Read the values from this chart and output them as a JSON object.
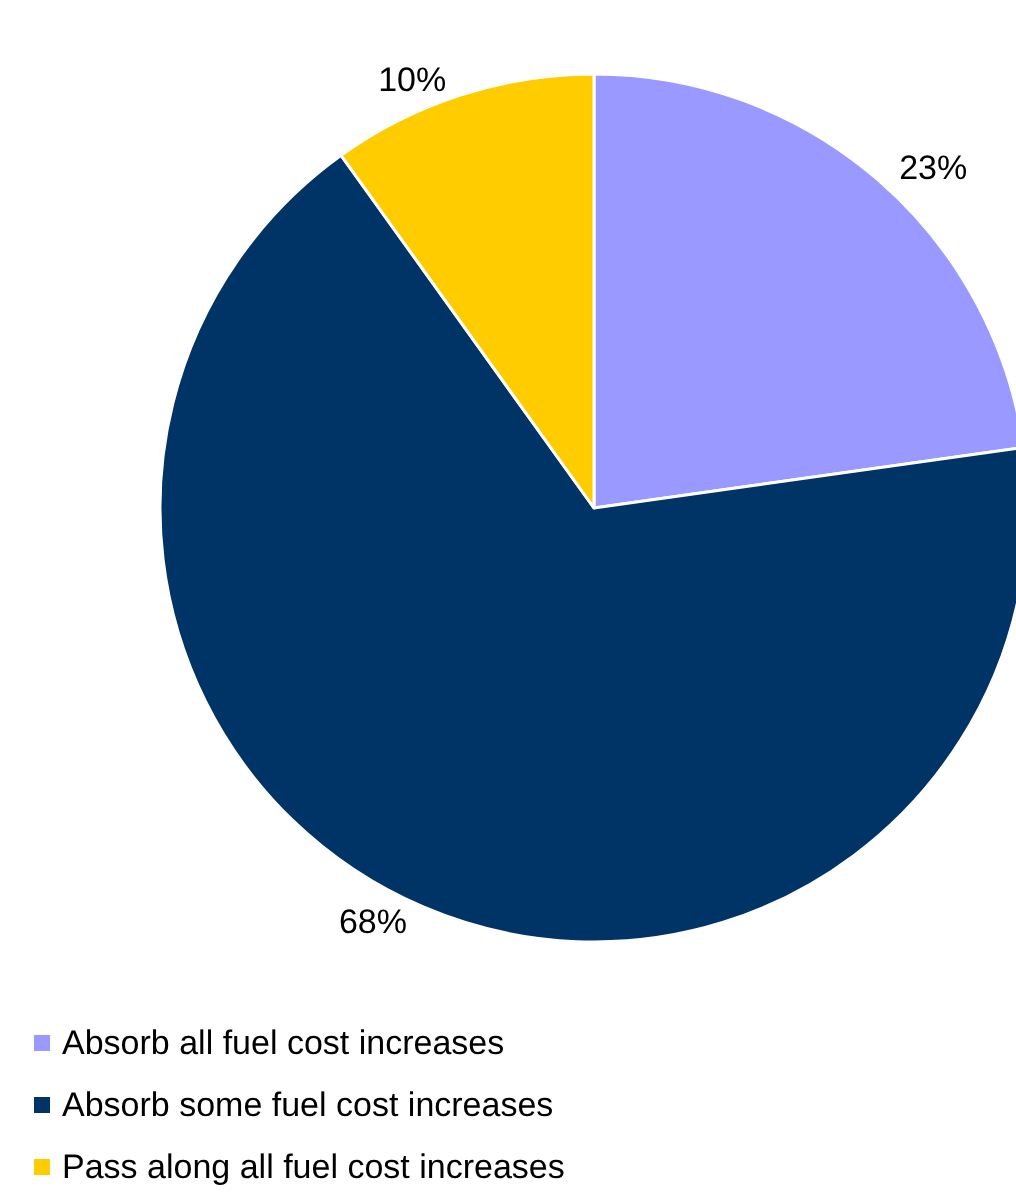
{
  "chart_data": {
    "type": "pie",
    "categories": [
      "Absorb all fuel cost increases",
      "Absorb some fuel cost increases",
      "Pass along all fuel cost increases"
    ],
    "values": [
      23,
      68,
      10
    ],
    "colors": [
      "#9999ff",
      "#003366",
      "#ffcc00"
    ],
    "value_labels": [
      "23%",
      "68%",
      "10%"
    ],
    "legend": "bottom left"
  }
}
